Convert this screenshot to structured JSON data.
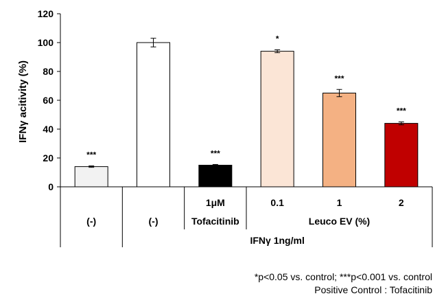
{
  "chart_data": {
    "type": "bar",
    "ylabel": "IFNγ acitivity (%)",
    "ylim": [
      0,
      120
    ],
    "yticks": [
      0,
      20,
      40,
      60,
      80,
      100,
      120
    ],
    "grid": false,
    "bars": [
      {
        "value": 14,
        "error": 0.5,
        "color": "#f2f2f2",
        "sig": "***"
      },
      {
        "value": 100,
        "error": 3,
        "color": "#ffffff",
        "sig": ""
      },
      {
        "value": 15,
        "error": 0.5,
        "color": "#000000",
        "sig": "***"
      },
      {
        "value": 94,
        "error": 1,
        "color": "#fbe5d6",
        "sig": "*"
      },
      {
        "value": 65,
        "error": 2.5,
        "color": "#f4b183",
        "sig": "***"
      },
      {
        "value": 44,
        "error": 1,
        "color": "#c00000",
        "sig": "***"
      }
    ],
    "category_labels": {
      "row1": [
        "",
        "",
        "1μM",
        "0.1",
        "1",
        "2"
      ],
      "row2": [
        "(-)",
        "(-)",
        "Tofacitinib",
        "Leuco EV (%)"
      ],
      "row3": "IFNγ 1ng/ml"
    }
  },
  "footnotes": {
    "line1": "*p<0.05 vs. control; ***p<0.001 vs. control",
    "line2": "Positive Control : Tofacitinib"
  }
}
